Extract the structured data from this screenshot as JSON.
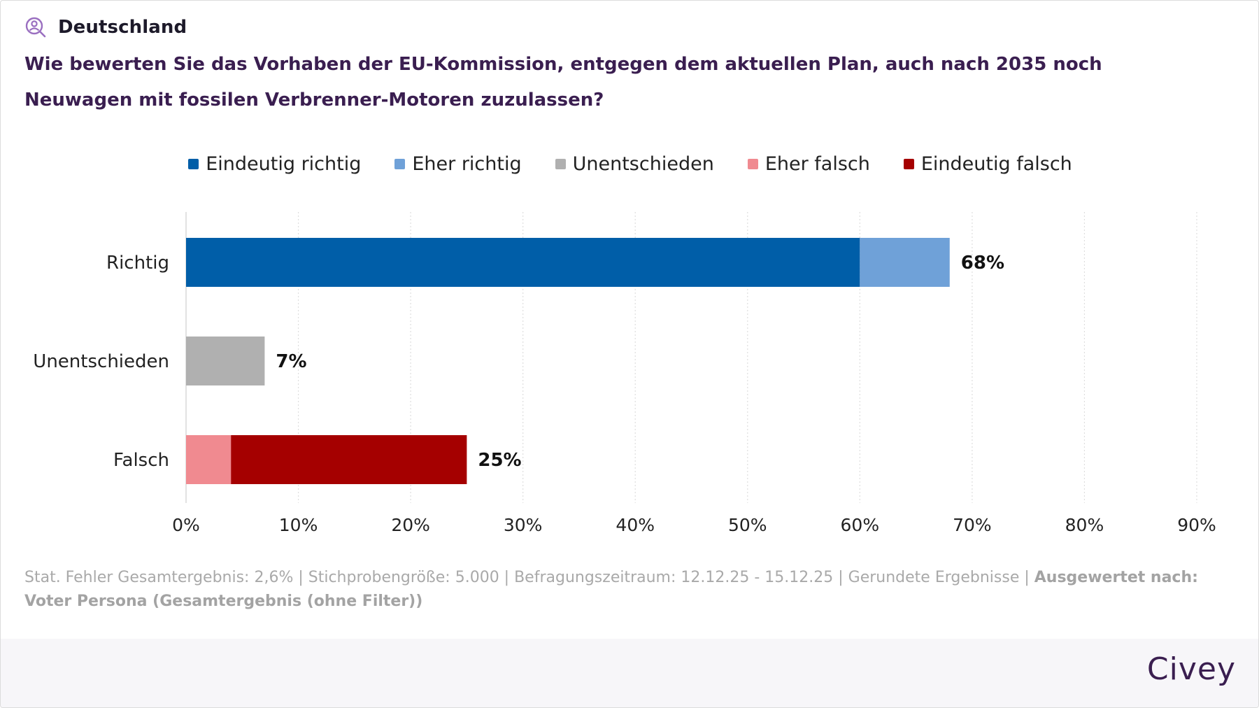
{
  "header": {
    "region_label": "Deutschland",
    "region_icon": "person-search-icon",
    "question": "Wie bewerten Sie das Vorhaben der EU-Kommission, entgegen dem aktuellen Plan, auch nach 2035 noch Neuwagen mit fossilen Verbrenner-Motoren zuzulassen?"
  },
  "colors": {
    "eindeutig_richtig": "#005ea8",
    "eher_richtig": "#6fa1d8",
    "unentschieden": "#b0b0b0",
    "eher_falsch": "#f08a90",
    "eindeutig_falsch": "#a50000",
    "title": "#3a1e50"
  },
  "chart_data": {
    "type": "bar",
    "orientation": "horizontal",
    "stacked": true,
    "categories": [
      "Richtig",
      "Unentschieden",
      "Falsch"
    ],
    "series": [
      {
        "name": "Eindeutig richtig",
        "values": [
          60,
          0,
          0
        ]
      },
      {
        "name": "Eher richtig",
        "values": [
          8,
          0,
          0
        ]
      },
      {
        "name": "Unentschieden",
        "values": [
          0,
          7,
          0
        ]
      },
      {
        "name": "Eher falsch",
        "values": [
          0,
          0,
          4
        ]
      },
      {
        "name": "Eindeutig falsch",
        "values": [
          0,
          0,
          21
        ]
      }
    ],
    "totals_labels": [
      "68%",
      "7%",
      "25%"
    ],
    "xlim": [
      0,
      90
    ],
    "xticks": [
      "0%",
      "10%",
      "20%",
      "30%",
      "40%",
      "50%",
      "60%",
      "70%",
      "80%",
      "90%"
    ],
    "grid": "vertical-dotted",
    "legend_position": "top-center"
  },
  "footnote": {
    "text": "Stat. Fehler Gesamtergebnis: 2,6% | Stichprobengröße: 5.000 | Befragungszeitraum: 12.12.25 - 15.12.25 | Gerundete Ergebnisse | ",
    "bold": "Ausgewertet nach: Voter Persona (Gesamtergebnis (ohne Filter))"
  },
  "brand": "Civey"
}
